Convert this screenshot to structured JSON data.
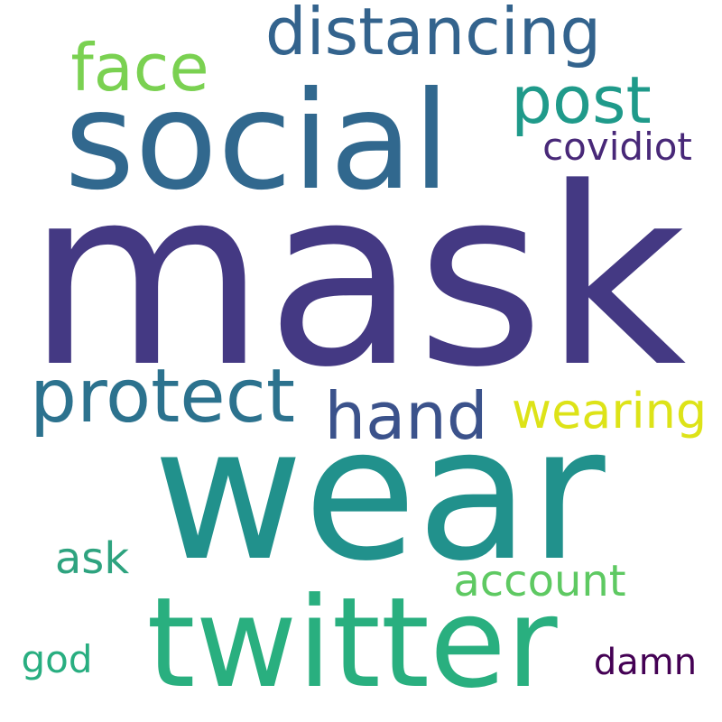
{
  "words": [
    {
      "text": "mask",
      "color": "#443983"
    },
    {
      "text": "wear",
      "color": "#21918c"
    },
    {
      "text": "social",
      "color": "#31688e"
    },
    {
      "text": "twitter",
      "color": "#29af7f"
    },
    {
      "text": "protect",
      "color": "#2c728e"
    },
    {
      "text": "distancing",
      "color": "#33638d"
    },
    {
      "text": "face",
      "color": "#7ad151"
    },
    {
      "text": "post",
      "color": "#1f9a8a"
    },
    {
      "text": "hand",
      "color": "#3b528b"
    },
    {
      "text": "wearing",
      "color": "#dde318"
    },
    {
      "text": "covidiot",
      "color": "#482878"
    },
    {
      "text": "account",
      "color": "#5ec962"
    },
    {
      "text": "ask",
      "color": "#2ea37f"
    },
    {
      "text": "god",
      "color": "#28ae80"
    },
    {
      "text": "damn",
      "color": "#440154"
    }
  ]
}
